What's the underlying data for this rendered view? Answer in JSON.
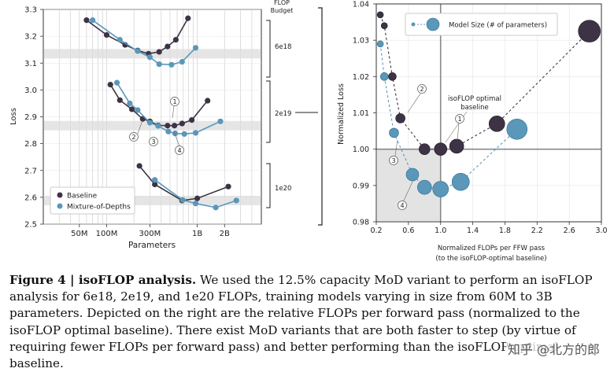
{
  "figure": {
    "left_chart": {
      "ylabel": "Loss",
      "xlabel": "Parameters",
      "yticks": [
        "2.5",
        "2.6",
        "2.7",
        "2.8",
        "2.9",
        "3.0",
        "3.1",
        "3.2",
        "3.3"
      ],
      "xticks": [
        "50M",
        "100M",
        "300M",
        "1B",
        "2B"
      ],
      "legend": [
        "Baseline",
        "Mixture-of-Depths"
      ],
      "budget_title_1": "FLOP",
      "budget_title_2": "Budget",
      "budgets": [
        "6e18",
        "2e19",
        "1e20"
      ],
      "callouts": [
        "1",
        "2",
        "3",
        "4"
      ]
    },
    "right_chart": {
      "ylabel": "Normalized Loss",
      "xlabel_1": "Normalized FLOPs per FFW pass",
      "xlabel_2": "(to the isoFLOP-optimal baseline)",
      "xticks": [
        "0.2",
        "0.6",
        "1.0",
        "1.4",
        "1.8",
        "2.2",
        "2.6",
        "3.0"
      ],
      "yticks": [
        "0.98",
        "0.99",
        "1.00",
        "1.01",
        "1.02",
        "1.03",
        "1.04"
      ],
      "legend": "Model Size (# of parameters)",
      "annotation_1": "isoFLOP optimal",
      "annotation_2": "baseline",
      "callouts": [
        "1",
        "2",
        "3",
        "4"
      ]
    },
    "colors": {
      "baseline": "#3d3344",
      "mod": "#5a97b9"
    }
  },
  "chart_data": [
    {
      "type": "line",
      "xscale": "log",
      "xlabel": "Parameters",
      "ylabel": "Loss",
      "ylim": [
        2.5,
        3.3
      ],
      "grid": true,
      "legend_position": "bottom-left",
      "series": [
        {
          "name": "Baseline",
          "group": "6e18",
          "x": [
            60000000,
            100000000,
            160000000,
            220000000,
            290000000,
            380000000,
            470000000,
            580000000,
            790000000
          ],
          "y": [
            3.26,
            3.205,
            3.168,
            3.147,
            3.135,
            3.142,
            3.162,
            3.187,
            3.267
          ]
        },
        {
          "name": "Mixture-of-Depths",
          "group": "6e18",
          "x": [
            70000000,
            140000000,
            220000000,
            300000000,
            380000000,
            520000000,
            680000000,
            960000000
          ],
          "y": [
            3.26,
            3.187,
            3.145,
            3.122,
            3.096,
            3.094,
            3.105,
            3.157
          ]
        },
        {
          "name": "Baseline",
          "group": "2e19",
          "x": [
            110000000,
            140000000,
            190000000,
            250000000,
            300000000,
            370000000,
            470000000,
            560000000,
            680000000,
            870000000,
            1300000000
          ],
          "y": [
            3.02,
            2.962,
            2.928,
            2.892,
            2.883,
            2.868,
            2.867,
            2.867,
            2.875,
            2.888,
            2.96
          ]
        },
        {
          "name": "Mixture-of-Depths",
          "group": "2e19",
          "x": [
            130000000,
            180000000,
            220000000,
            300000000,
            370000000,
            480000000,
            570000000,
            720000000,
            960000000,
            1800000000
          ],
          "y": [
            3.027,
            2.95,
            2.925,
            2.878,
            2.866,
            2.845,
            2.838,
            2.836,
            2.84,
            2.883
          ]
        },
        {
          "name": "Baseline",
          "group": "1e20",
          "x": [
            230000000,
            340000000,
            680000000,
            1000000000,
            2200000000
          ],
          "y": [
            2.717,
            2.648,
            2.588,
            2.596,
            2.64
          ]
        },
        {
          "name": "Mixture-of-Depths",
          "group": "1e20",
          "x": [
            340000000,
            690000000,
            960000000,
            1600000000,
            2700000000
          ],
          "y": [
            2.665,
            2.59,
            2.577,
            2.562,
            2.588
          ]
        }
      ]
    },
    {
      "type": "scatter",
      "xlabel": "Normalized FLOPs per FFW pass",
      "ylabel": "Normalized Loss",
      "xlim": [
        0.2,
        3.0
      ],
      "ylim": [
        0.98,
        1.04
      ],
      "grid": true,
      "legend_position": "top",
      "series": [
        {
          "name": "Baseline",
          "x": [
            0.25,
            0.3,
            0.4,
            0.5,
            0.8,
            1.0,
            1.2,
            1.7,
            2.85
          ],
          "y": [
            1.037,
            1.034,
            1.02,
            1.0085,
            1.0,
            1.0,
            1.0008,
            1.007,
            1.0325
          ],
          "size": [
            4,
            4,
            5,
            6,
            7,
            8,
            9,
            10,
            14
          ]
        },
        {
          "name": "Mixture-of-Depths",
          "x": [
            0.25,
            0.3,
            0.42,
            0.65,
            0.8,
            1.0,
            1.25,
            1.95
          ],
          "y": [
            1.029,
            1.02,
            1.0045,
            0.993,
            0.9895,
            0.989,
            0.991,
            1.0055
          ],
          "size": [
            4,
            5,
            6,
            8,
            9,
            10,
            11,
            13
          ]
        }
      ]
    }
  ],
  "caption": {
    "label": "Figure 4 | ",
    "title": "isoFLOP analysis.",
    "body": " We used the 12.5% capacity MoD variant to perform an isoFLOP analysis for 6e18, 2e19, and 1e20 FLOPs, training models varying in size from 60M to 3B parameters. Depicted on the right are the relative FLOPs per forward pass (normalized to the isoFLOP optimal baseline). There exist MoD variants that are both faster to step (by virtue of requiring fewer FLOPs per forward pass) and better performing than the isoFLOP optimal baseline."
  },
  "watermark": "知乎 @北方的郎"
}
